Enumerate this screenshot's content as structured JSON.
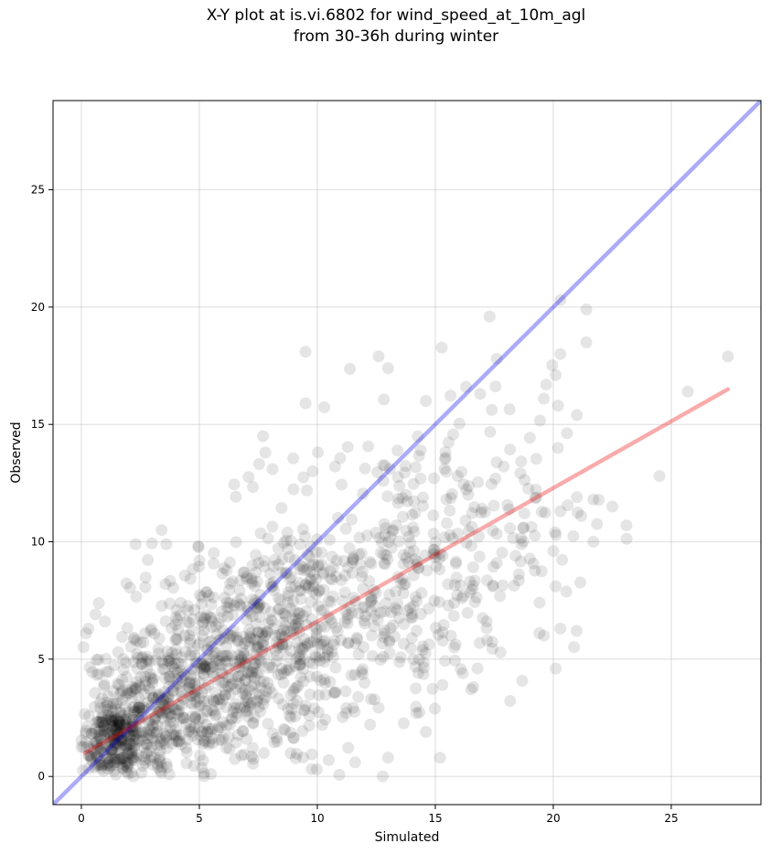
{
  "chart_data": {
    "type": "scatter",
    "title_lines": [
      "X-Y plot at is.vi.6802 for wind_speed_at_10m_agl",
      "from 30-36h during winter"
    ],
    "xlabel": "Simulated",
    "ylabel": "Observed",
    "xlim": [
      -1.2,
      28.8
    ],
    "ylim": [
      -1.2,
      28.8
    ],
    "xticks": [
      0,
      5,
      10,
      15,
      20,
      25
    ],
    "yticks": [
      0,
      5,
      10,
      15,
      20,
      25
    ],
    "grid": true,
    "point_color": "#000000",
    "point_alpha": 0.1,
    "reference_lines": [
      {
        "kind": "one-to-one",
        "color": "#0000ee",
        "x": [
          -1.2,
          28.8
        ],
        "y": [
          -1.2,
          28.8
        ]
      },
      {
        "kind": "linear-fit",
        "color": "#ee0000",
        "x": [
          0.15,
          27.4
        ],
        "y": [
          1.0,
          16.5
        ]
      }
    ],
    "clusters": [
      {
        "cx": 1.4,
        "cy": 1.6,
        "sx": 0.7,
        "sy": 0.9,
        "n": 260
      },
      {
        "cx": 3.5,
        "cy": 2.5,
        "sx": 1.8,
        "sy": 1.7,
        "n": 380
      },
      {
        "cx": 6.5,
        "cy": 5.0,
        "sx": 2.2,
        "sy": 2.2,
        "n": 420
      },
      {
        "cx": 10.0,
        "cy": 6.5,
        "sx": 2.5,
        "sy": 2.6,
        "n": 300
      },
      {
        "cx": 14.0,
        "cy": 9.0,
        "sx": 2.5,
        "sy": 2.7,
        "n": 240
      },
      {
        "cx": 17.5,
        "cy": 11.5,
        "sx": 2.5,
        "sy": 3.2,
        "n": 70
      }
    ],
    "points": [
      [
        9.5,
        18.1
      ],
      [
        9.5,
        15.9
      ],
      [
        12.6,
        17.9
      ],
      [
        13.0,
        17.4
      ],
      [
        17.3,
        19.6
      ],
      [
        17.6,
        17.8
      ],
      [
        20.3,
        20.3
      ],
      [
        21.4,
        19.9
      ],
      [
        21.4,
        18.5
      ],
      [
        20.3,
        18.0
      ],
      [
        20.1,
        17.1
      ],
      [
        19.7,
        16.7
      ],
      [
        20.2,
        15.8
      ],
      [
        19.6,
        16.1
      ],
      [
        25.7,
        16.4
      ],
      [
        27.4,
        17.9
      ],
      [
        24.5,
        12.8
      ],
      [
        22.5,
        11.5
      ],
      [
        23.1,
        10.7
      ],
      [
        21.7,
        10.0
      ],
      [
        21.0,
        11.9
      ],
      [
        21.7,
        11.8
      ],
      [
        20.3,
        11.3
      ],
      [
        20.2,
        14.0
      ],
      [
        20.1,
        8.1
      ],
      [
        19.6,
        6.0
      ],
      [
        20.3,
        6.3
      ],
      [
        20.1,
        4.6
      ],
      [
        21.0,
        15.4
      ],
      [
        16.3,
        16.6
      ],
      [
        16.9,
        16.3
      ],
      [
        14.6,
        16.0
      ],
      [
        7.7,
        14.5
      ],
      [
        7.8,
        13.8
      ],
      [
        8.1,
        13.1
      ],
      [
        9.8,
        13.0
      ],
      [
        3.4,
        10.5
      ],
      [
        3.6,
        9.9
      ],
      [
        2.3,
        9.9
      ],
      [
        0.2,
        6.1
      ],
      [
        0.3,
        6.3
      ],
      [
        1.0,
        6.6
      ],
      [
        15.2,
        0.8
      ],
      [
        15.3,
        3.9
      ],
      [
        13.0,
        0.8
      ],
      [
        11.6,
        0.6
      ],
      [
        14.6,
        1.9
      ],
      [
        14.2,
        2.7
      ],
      [
        18.4,
        9.4
      ],
      [
        15.8,
        5.5
      ]
    ]
  }
}
